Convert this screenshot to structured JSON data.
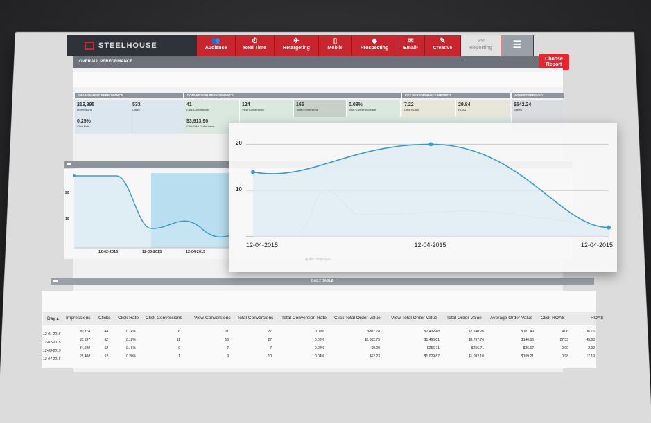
{
  "brand": {
    "name": "STEELHOUSE",
    "accent": "#c8252f"
  },
  "nav": [
    {
      "label": "Audience",
      "icon": "users-icon",
      "glyph": "👥"
    },
    {
      "label": "Real Time",
      "icon": "clock-icon",
      "glyph": "⏱"
    },
    {
      "label": "Retargeting",
      "icon": "plane-icon",
      "glyph": "✈"
    },
    {
      "label": "Mobile",
      "icon": "phone-icon",
      "glyph": "▯"
    },
    {
      "label": "Prospecting",
      "icon": "target-icon",
      "glyph": "◈"
    },
    {
      "label": "Email²",
      "icon": "mail-icon",
      "glyph": "✉"
    },
    {
      "label": "Creative",
      "icon": "brush-icon",
      "glyph": "✎"
    },
    {
      "label": "Reporting",
      "icon": "chart-icon",
      "glyph": "〰"
    },
    {
      "label": "",
      "icon": "menu-icon",
      "glyph": "☰"
    }
  ],
  "page_title": "OVERALL PERFORMANCE",
  "choose_report": "Choose Report",
  "sections": {
    "engagement": "ENGAGEMENT PERFOMANCE",
    "conversion": "CONVERSION PERFORMANCE",
    "kpm": "KEY PERFORMANCE METRICS",
    "advertiser": "ADVERTISER INFO"
  },
  "metrics_row1": [
    {
      "value": "216,895",
      "label": "Impressions"
    },
    {
      "value": "533",
      "label": "Clicks"
    },
    {
      "value": "41",
      "label": "Click Conversions"
    },
    {
      "value": "124",
      "label": "View Conversions"
    },
    {
      "value": "165",
      "label": "Total Conversions"
    },
    {
      "value": "0.08%",
      "label": "Total Conversion Rate"
    },
    {
      "value": "7.22",
      "label": "Click ROAS"
    },
    {
      "value": "29.84",
      "label": "ROAS"
    },
    {
      "value": "$542.24",
      "label": "Spend"
    }
  ],
  "metrics_row2": [
    {
      "value": "0.25%",
      "label": "Click Rate"
    },
    {
      "value": "$3,913.90",
      "label": "Click Total Order Value"
    }
  ],
  "left_chart": {
    "y_ticks": [
      "20",
      "10"
    ],
    "x_ticks": [
      "12-02-2015",
      "12-03-2015",
      "12-04-2015"
    ]
  },
  "chart_data": {
    "type": "line",
    "x": [
      "12-04-2015",
      "12-04-2015",
      "12-04-2015"
    ],
    "series": [
      {
        "values": [
          14,
          20,
          2
        ]
      }
    ],
    "ylim": [
      0,
      22
    ],
    "y_ticks": [
      "20",
      "10"
    ],
    "color": "#3a9bd4",
    "grid": true
  },
  "overlay_faint": {
    "legend": "All Campaigns"
  },
  "daily_title": "DAILY TABLE",
  "table": {
    "headers": [
      "Day ▴",
      "Impressions",
      "Clicks",
      "Click Rate",
      "Click Conversions",
      "View Conversions",
      "Total Conversions",
      "Total Conversion Rate",
      "Click Total Order Value",
      "View Total Order Value",
      "Total Order Value",
      "Average Order Value",
      "Click ROAS",
      "ROAS"
    ],
    "rows": [
      [
        "12-01-2015",
        "30,314",
        "44",
        "0.14%",
        "6",
        "21",
        "27",
        "0.09%",
        "$307.78",
        "$2,432.48",
        "$2,740.26",
        "$101.49",
        "4.06",
        "36.16"
      ],
      [
        "12-02-2015",
        "33,697",
        "62",
        "0.18%",
        "11",
        "16",
        "27",
        "0.08%",
        "$2,302.75",
        "$1,495.01",
        "$3,797.76",
        "$140.66",
        "27.33",
        "45.08"
      ],
      [
        "12-03-2015",
        "34,590",
        "52",
        "0.15%",
        "0",
        "7",
        "7",
        "0.02%",
        "$0.00",
        "$256.71",
        "$256.71",
        "$36.67",
        "0.00",
        "2.99"
      ],
      [
        "12-04-2015",
        "25,408",
        "52",
        "0.20%",
        "1",
        "9",
        "10",
        "0.04%",
        "$62.23",
        "$1,029.87",
        "$1,092.10",
        "$109.21",
        "0.98",
        "17.19"
      ]
    ]
  }
}
